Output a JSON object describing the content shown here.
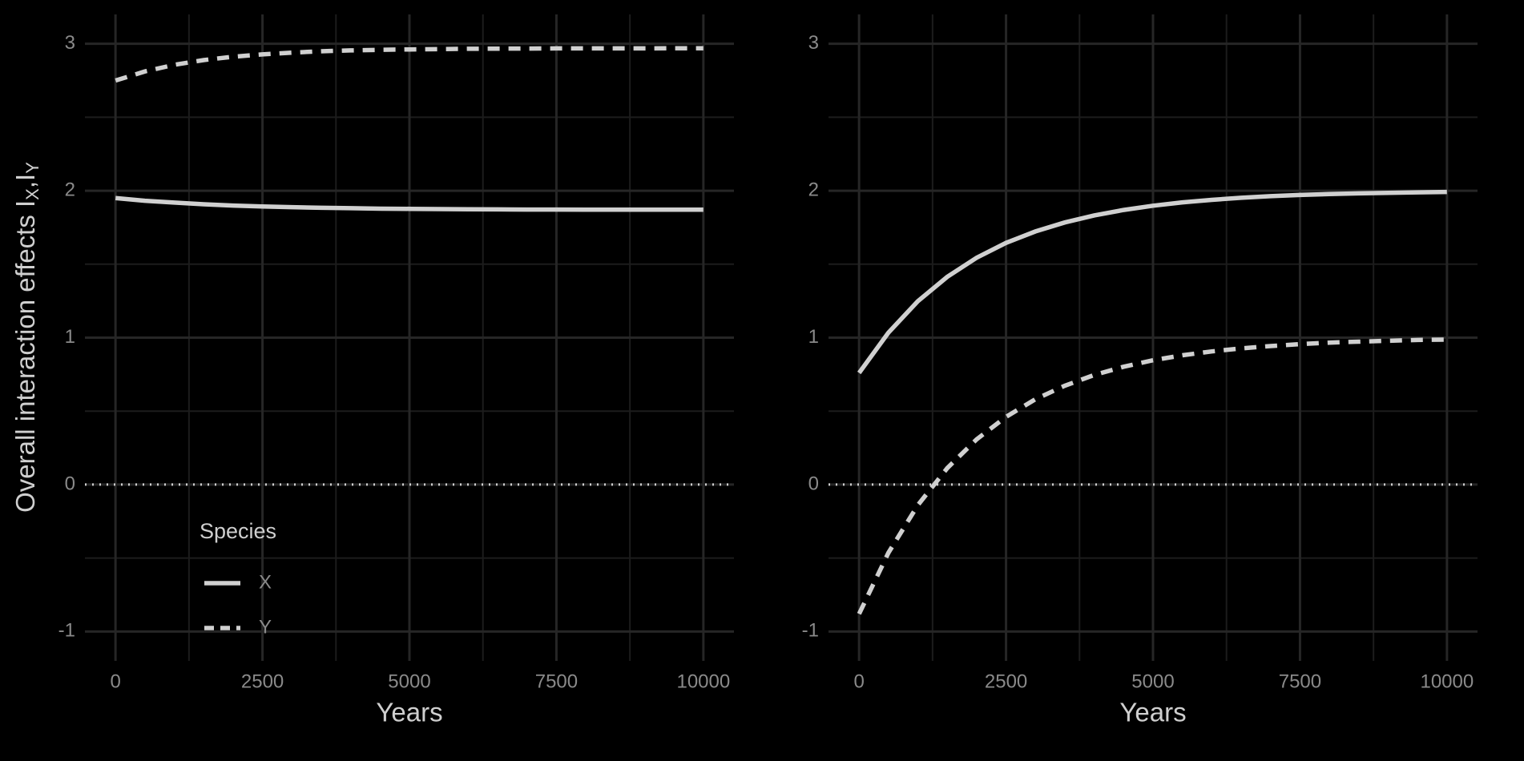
{
  "chart_data": [
    {
      "type": "line",
      "x_label": "Years",
      "y_label_parts": [
        "Overall interaction effects I",
        "X",
        ",I",
        "Y"
      ],
      "legend_title": "Species",
      "legend": "bottom-left",
      "x": [
        0,
        500,
        1000,
        1500,
        2000,
        2500,
        3000,
        3500,
        4000,
        4500,
        5000,
        5500,
        6000,
        6500,
        7000,
        7500,
        8000,
        8500,
        9000,
        9500,
        10000
      ],
      "series": [
        {
          "name": "X",
          "color": "#d0d0d0",
          "linestyle": "solid",
          "values": [
            1.95,
            1.932,
            1.919,
            1.908,
            1.899,
            1.893,
            1.888,
            1.884,
            1.881,
            1.878,
            1.877,
            1.875,
            1.874,
            1.873,
            1.872,
            1.872,
            1.871,
            1.871,
            1.871,
            1.871,
            1.871
          ]
        },
        {
          "name": "Y",
          "color": "#d0d0d0",
          "linestyle": "dashed",
          "values": [
            2.75,
            2.812,
            2.857,
            2.889,
            2.912,
            2.928,
            2.94,
            2.949,
            2.955,
            2.959,
            2.962,
            2.964,
            2.966,
            2.967,
            2.968,
            2.969,
            2.969,
            2.969,
            2.969,
            2.97,
            2.97
          ]
        }
      ],
      "xlim": [
        -520,
        10520
      ],
      "xticks": [
        0,
        2500,
        5000,
        7500,
        10000
      ],
      "ylim": [
        -1.2,
        3.2
      ],
      "yticks": [
        -1,
        0,
        1,
        2,
        3
      ],
      "grid": true,
      "hline": 0
    },
    {
      "type": "line",
      "x_label": "Years",
      "x": [
        0,
        500,
        1000,
        1500,
        2000,
        2500,
        3000,
        3500,
        4000,
        4500,
        5000,
        5500,
        6000,
        6500,
        7000,
        7500,
        8000,
        8500,
        9000,
        9500,
        10000
      ],
      "series": [
        {
          "name": "X",
          "color": "#d0d0d0",
          "linestyle": "solid",
          "values": [
            0.76,
            1.034,
            1.248,
            1.414,
            1.544,
            1.645,
            1.723,
            1.784,
            1.832,
            1.869,
            1.898,
            1.921,
            1.938,
            1.952,
            1.963,
            1.971,
            1.977,
            1.982,
            1.986,
            1.989,
            1.992
          ]
        },
        {
          "name": "Y",
          "color": "#d0d0d0",
          "linestyle": "dashed",
          "values": [
            -0.88,
            -0.464,
            -0.14,
            0.112,
            0.308,
            0.461,
            0.581,
            0.673,
            0.746,
            0.802,
            0.846,
            0.88,
            0.906,
            0.927,
            0.943,
            0.956,
            0.966,
            0.973,
            0.979,
            0.984,
            0.987
          ]
        }
      ],
      "xlim": [
        -520,
        10520
      ],
      "xticks": [
        0,
        2500,
        5000,
        7500,
        10000
      ],
      "ylim": [
        -1.2,
        3.2
      ],
      "yticks": [
        -1,
        0,
        1,
        2,
        3
      ],
      "grid": true,
      "hline": 0
    }
  ]
}
